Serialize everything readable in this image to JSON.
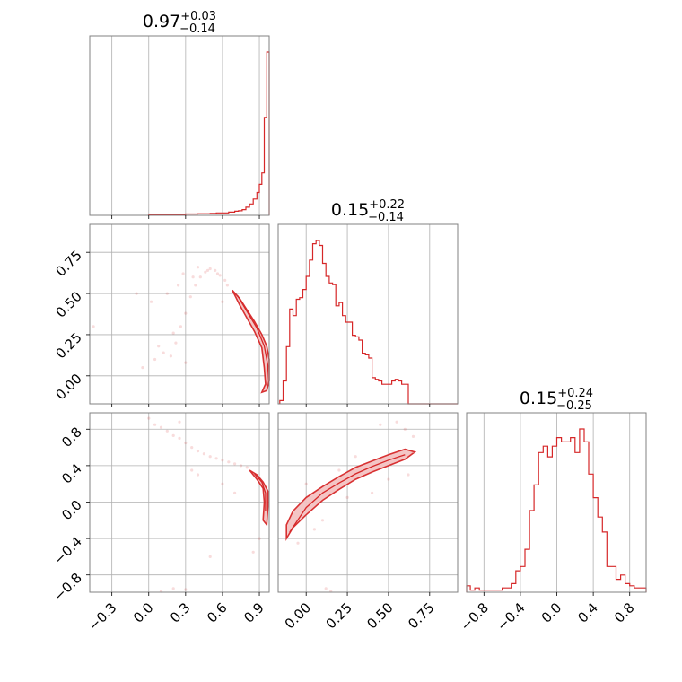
{
  "chart_data": {
    "type": "corner",
    "color": "#d62728",
    "parameters": [
      {
        "title": {
          "median": "0.97",
          "plus": "+0.03",
          "minus": "−0.14"
        },
        "range": [
          -0.48,
          0.98
        ],
        "ticks": [
          -0.3,
          0.0,
          0.3,
          0.6,
          0.9
        ],
        "tick_labels": [
          "−0.3",
          "0.0",
          "0.3",
          "0.6",
          "0.9"
        ],
        "hist": {
          "edges": [
            0.0,
            0.05,
            0.1,
            0.15,
            0.2,
            0.25,
            0.3,
            0.35,
            0.4,
            0.45,
            0.5,
            0.55,
            0.6,
            0.65,
            0.7,
            0.73,
            0.76,
            0.79,
            0.82,
            0.85,
            0.88,
            0.9,
            0.92,
            0.94,
            0.96,
            0.98
          ],
          "counts": [
            0.5,
            0.5,
            0.5,
            0.3,
            0.5,
            0.5,
            0.8,
            0.8,
            1,
            1,
            1.2,
            1.5,
            1.5,
            2,
            2.5,
            2.8,
            3.5,
            5,
            7,
            10,
            14,
            19,
            26,
            60,
            100
          ]
        }
      },
      {
        "title": {
          "median": "0.15",
          "plus": "+0.22",
          "minus": "−0.14"
        },
        "range": [
          -0.17,
          0.92
        ],
        "ticks": [
          0.0,
          0.25,
          0.5,
          0.75
        ],
        "tick_labels": [
          "0.00",
          "0.25",
          "0.50",
          "0.75"
        ],
        "hist": {
          "edges": [
            -0.16,
            -0.14,
            -0.12,
            -0.1,
            -0.08,
            -0.06,
            -0.04,
            -0.02,
            0.0,
            0.02,
            0.04,
            0.06,
            0.08,
            0.1,
            0.12,
            0.14,
            0.16,
            0.18,
            0.2,
            0.22,
            0.24,
            0.26,
            0.28,
            0.3,
            0.32,
            0.34,
            0.36,
            0.38,
            0.4,
            0.42,
            0.44,
            0.46,
            0.48,
            0.5,
            0.52,
            0.54,
            0.56,
            0.58,
            0.6,
            0.62,
            0.64,
            0.66,
            0.68,
            0.92
          ],
          "counts": [
            2,
            14,
            35,
            58,
            54,
            64,
            65,
            70,
            78,
            88,
            98,
            100,
            97,
            86,
            78,
            74,
            73,
            60,
            62,
            54,
            50,
            50,
            42,
            41,
            39,
            31,
            30,
            28,
            16,
            15,
            14,
            12,
            12,
            12,
            14,
            15,
            14,
            12,
            12,
            0,
            0,
            0,
            0
          ]
        }
      },
      {
        "title": {
          "median": "0.15",
          "plus": "+0.24",
          "minus": "−0.25"
        },
        "range": [
          -0.99,
          0.98
        ],
        "ticks": [
          -0.8,
          -0.4,
          0.0,
          0.4,
          0.8
        ],
        "tick_labels": [
          "−0.8",
          "−0.4",
          "0.0",
          "0.4",
          "0.8"
        ],
        "hist": {
          "edges": [
            -0.99,
            -0.95,
            -0.9,
            -0.85,
            -0.8,
            -0.75,
            -0.7,
            -0.65,
            -0.6,
            -0.55,
            -0.5,
            -0.45,
            -0.4,
            -0.35,
            -0.3,
            -0.25,
            -0.2,
            -0.15,
            -0.1,
            -0.05,
            0.0,
            0.05,
            0.1,
            0.15,
            0.2,
            0.25,
            0.3,
            0.35,
            0.4,
            0.45,
            0.5,
            0.55,
            0.6,
            0.65,
            0.7,
            0.75,
            0.8,
            0.85,
            0.9,
            0.98
          ],
          "counts": [
            3,
            1,
            2,
            1,
            1,
            1,
            1,
            1,
            2,
            2,
            4,
            10,
            12,
            20,
            38,
            50,
            65,
            68,
            63,
            68,
            72,
            70,
            70,
            72,
            65,
            76,
            70,
            55,
            44,
            35,
            28,
            12,
            12,
            6,
            8,
            4,
            3,
            2,
            2
          ]
        }
      }
    ],
    "pairs": [
      {
        "x_param": 0,
        "y_param": 1,
        "y_ticks": [
          0.0,
          0.25,
          0.5,
          0.75
        ],
        "y_tick_labels": [
          "0.00",
          "0.25",
          "0.50",
          "0.75"
        ],
        "contour_outer": [
          [
            0.68,
            0.52
          ],
          [
            0.74,
            0.47
          ],
          [
            0.8,
            0.4
          ],
          [
            0.86,
            0.33
          ],
          [
            0.92,
            0.25
          ],
          [
            0.96,
            0.18
          ],
          [
            0.98,
            0.1
          ],
          [
            0.98,
            -0.03
          ],
          [
            0.96,
            -0.09
          ],
          [
            0.92,
            -0.1
          ],
          [
            0.95,
            -0.05
          ],
          [
            0.94,
            0.05
          ],
          [
            0.92,
            0.17
          ],
          [
            0.86,
            0.27
          ],
          [
            0.8,
            0.35
          ],
          [
            0.74,
            0.43
          ],
          [
            0.68,
            0.52
          ]
        ],
        "contour_inner": [
          [
            0.72,
            0.49
          ],
          [
            0.8,
            0.39
          ],
          [
            0.88,
            0.29
          ],
          [
            0.94,
            0.18
          ],
          [
            0.97,
            0.06
          ],
          [
            0.96,
            -0.06
          ]
        ],
        "scatter": [
          [
            -0.05,
            0.05
          ],
          [
            0.05,
            0.1
          ],
          [
            0.12,
            0.14
          ],
          [
            0.18,
            0.12
          ],
          [
            0.22,
            0.2
          ],
          [
            0.26,
            0.3
          ],
          [
            0.3,
            0.38
          ],
          [
            0.34,
            0.48
          ],
          [
            0.38,
            0.55
          ],
          [
            0.42,
            0.6
          ],
          [
            0.46,
            0.63
          ],
          [
            0.5,
            0.65
          ],
          [
            0.54,
            0.64
          ],
          [
            0.58,
            0.61
          ],
          [
            0.62,
            0.58
          ],
          [
            -0.1,
            0.5
          ],
          [
            0.02,
            0.45
          ],
          [
            -0.45,
            0.3
          ],
          [
            0.15,
            0.5
          ],
          [
            0.28,
            0.62
          ],
          [
            0.4,
            0.66
          ],
          [
            0.56,
            0.62
          ],
          [
            0.64,
            0.55
          ],
          [
            0.2,
            0.26
          ],
          [
            0.08,
            0.18
          ],
          [
            0.48,
            0.64
          ],
          [
            0.36,
            0.6
          ],
          [
            0.24,
            0.55
          ],
          [
            0.6,
            0.45
          ],
          [
            0.3,
            0.08
          ]
        ]
      },
      {
        "x_param": 0,
        "y_param": 2,
        "y_ticks": [
          -0.8,
          -0.4,
          0.0,
          0.4,
          0.8
        ],
        "y_tick_labels": [
          "−0.8",
          "−0.4",
          "0.0",
          "0.4",
          "0.8"
        ],
        "contour_outer": [
          [
            0.82,
            0.35
          ],
          [
            0.88,
            0.3
          ],
          [
            0.93,
            0.22
          ],
          [
            0.97,
            0.12
          ],
          [
            0.97,
            -0.05
          ],
          [
            0.96,
            -0.25
          ],
          [
            0.93,
            -0.2
          ],
          [
            0.94,
            0.0
          ],
          [
            0.93,
            0.15
          ],
          [
            0.88,
            0.25
          ],
          [
            0.82,
            0.35
          ]
        ],
        "contour_inner": [
          [
            0.86,
            0.31
          ],
          [
            0.92,
            0.22
          ],
          [
            0.95,
            0.1
          ],
          [
            0.95,
            -0.1
          ]
        ],
        "scatter": [
          [
            0.0,
            0.92
          ],
          [
            0.05,
            0.85
          ],
          [
            0.1,
            0.82
          ],
          [
            0.15,
            0.78
          ],
          [
            0.2,
            0.73
          ],
          [
            0.25,
            0.7
          ],
          [
            0.3,
            0.65
          ],
          [
            0.35,
            0.6
          ],
          [
            0.4,
            0.56
          ],
          [
            0.45,
            0.53
          ],
          [
            0.5,
            0.5
          ],
          [
            0.55,
            0.48
          ],
          [
            0.6,
            0.46
          ],
          [
            0.65,
            0.44
          ],
          [
            0.7,
            0.42
          ],
          [
            0.75,
            0.4
          ],
          [
            0.8,
            0.38
          ],
          [
            0.4,
            0.3
          ],
          [
            0.6,
            0.2
          ],
          [
            0.9,
            -0.4
          ],
          [
            0.85,
            -0.55
          ],
          [
            0.1,
            -0.98
          ],
          [
            0.2,
            -0.95
          ],
          [
            0.3,
            -0.96
          ],
          [
            0.5,
            -0.6
          ],
          [
            0.7,
            0.1
          ],
          [
            0.35,
            0.35
          ],
          [
            0.25,
            0.88
          ]
        ]
      },
      {
        "x_param": 1,
        "y_param": 2,
        "contour_outer": [
          [
            -0.12,
            -0.4
          ],
          [
            -0.08,
            -0.28
          ],
          [
            0.0,
            -0.14
          ],
          [
            0.1,
            0.02
          ],
          [
            0.2,
            0.14
          ],
          [
            0.3,
            0.25
          ],
          [
            0.4,
            0.33
          ],
          [
            0.5,
            0.4
          ],
          [
            0.6,
            0.47
          ],
          [
            0.66,
            0.55
          ],
          [
            0.6,
            0.58
          ],
          [
            0.5,
            0.52
          ],
          [
            0.4,
            0.45
          ],
          [
            0.3,
            0.38
          ],
          [
            0.2,
            0.28
          ],
          [
            0.1,
            0.17
          ],
          [
            0.0,
            0.05
          ],
          [
            -0.08,
            -0.1
          ],
          [
            -0.12,
            -0.25
          ],
          [
            -0.12,
            -0.4
          ]
        ],
        "contour_inner": [
          [
            -0.1,
            -0.33
          ],
          [
            0.0,
            -0.06
          ],
          [
            0.1,
            0.1
          ],
          [
            0.2,
            0.21
          ],
          [
            0.3,
            0.31
          ],
          [
            0.4,
            0.39
          ],
          [
            0.5,
            0.46
          ],
          [
            0.6,
            0.52
          ]
        ],
        "scatter": [
          [
            0.55,
            0.88
          ],
          [
            0.6,
            0.8
          ],
          [
            0.65,
            0.72
          ],
          [
            0.45,
            0.85
          ],
          [
            0.35,
            0.3
          ],
          [
            0.25,
            0.05
          ],
          [
            0.4,
            0.1
          ],
          [
            0.1,
            -0.2
          ],
          [
            0.05,
            -0.3
          ],
          [
            -0.05,
            -0.45
          ],
          [
            0.15,
            -0.98
          ],
          [
            0.12,
            -0.95
          ],
          [
            0.5,
            0.25
          ],
          [
            0.3,
            0.5
          ],
          [
            0.2,
            0.35
          ],
          [
            0.62,
            0.3
          ],
          [
            0.0,
            0.2
          ]
        ]
      }
    ]
  }
}
